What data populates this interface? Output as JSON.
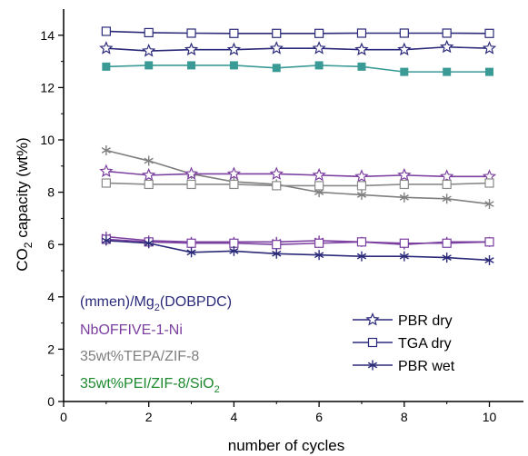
{
  "colors": {
    "mmen": "#2b2a7a",
    "nbo": "#7b3fa0",
    "tepa": "#7f7f7f",
    "pei": "#2e8b3a",
    "zif_pei_series": "#3a9a96",
    "pei_label": "#1d8a2f"
  },
  "chart_data": {
    "type": "line",
    "xlabel": "number of cycles",
    "ylabel": "CO2 capacity (wt%)",
    "ylabel_parts": {
      "main": "CO",
      "sub": "2",
      "rest": " capacity (wt%)"
    },
    "xlim": [
      0,
      10.8
    ],
    "ylim": [
      0,
      15
    ],
    "xticks": [
      0,
      2,
      4,
      6,
      8,
      10
    ],
    "yticks": [
      0,
      2,
      4,
      6,
      8,
      10,
      12,
      14
    ],
    "x": [
      1,
      2,
      3,
      4,
      5,
      6,
      7,
      8,
      9,
      10
    ],
    "material_labels": [
      {
        "text": "(mmen)/Mg",
        "sub": "2",
        "after": "(DOBPDC)",
        "color": "#2b2a7a"
      },
      {
        "text": "NbOFFIVE-1-Ni",
        "sub": "",
        "after": "",
        "color": "#7b3fa0"
      },
      {
        "text": "35wt%TEPA/ZIF-8",
        "sub": "",
        "after": "",
        "color": "#7f7f7f"
      },
      {
        "text": "35wt%PEI/ZIF-8/SiO",
        "sub": "2",
        "after": "",
        "color": "#1d8a2f"
      }
    ],
    "legend": [
      {
        "label": "PBR dry",
        "marker": "star"
      },
      {
        "label": "TGA dry",
        "marker": "square"
      },
      {
        "label": "PBR wet",
        "marker": "asterisk"
      }
    ],
    "series": [
      {
        "material": "(mmen)/Mg2(DOBPDC)",
        "condition": "TGA dry",
        "marker": "square",
        "color": "#2b2a7a",
        "values": [
          14.15,
          14.1,
          14.08,
          14.07,
          14.07,
          14.07,
          14.08,
          14.08,
          14.08,
          14.07
        ]
      },
      {
        "material": "(mmen)/Mg2(DOBPDC)",
        "condition": "PBR dry",
        "marker": "star",
        "color": "#2b2a7a",
        "values": [
          13.5,
          13.4,
          13.45,
          13.45,
          13.5,
          13.5,
          13.45,
          13.45,
          13.55,
          13.5
        ]
      },
      {
        "material": "35wt%PEI/ZIF-8/SiO2",
        "condition": "PBR",
        "marker": "square-filled",
        "color": "#3a9a96",
        "values": [
          12.8,
          12.85,
          12.85,
          12.85,
          12.75,
          12.85,
          12.8,
          12.6,
          12.6,
          12.6
        ]
      },
      {
        "material": "35wt%TEPA/ZIF-8",
        "condition": "PBR",
        "marker": "asterisk",
        "color": "#7f7f7f",
        "values": [
          9.6,
          9.2,
          8.7,
          8.4,
          8.3,
          8.0,
          7.9,
          7.8,
          7.75,
          7.55
        ]
      },
      {
        "material": "NbOFFIVE-1-Ni",
        "condition": "PBR dry",
        "marker": "star",
        "color": "#7b3fa0",
        "values": [
          8.8,
          8.65,
          8.7,
          8.7,
          8.7,
          8.65,
          8.6,
          8.65,
          8.6,
          8.6
        ]
      },
      {
        "material": "NbOFFIVE-1-Ni",
        "condition": "TGA dry",
        "marker": "square",
        "color": "#8a8a8a",
        "values": [
          8.35,
          8.3,
          8.3,
          8.3,
          8.25,
          8.25,
          8.25,
          8.3,
          8.3,
          8.35
        ]
      },
      {
        "material": "NbOFFIVE-1-Ni",
        "condition": "PBR wet",
        "marker": "asterisk",
        "color": "#7b3fa0",
        "values": [
          6.3,
          6.15,
          6.1,
          6.1,
          6.1,
          6.15,
          6.1,
          6.0,
          6.1,
          6.1
        ]
      },
      {
        "material": "NbOFFIVE-1-Ni",
        "condition": "TGA dry",
        "marker": "square",
        "color": "#7b3fa0",
        "values": [
          6.2,
          6.1,
          6.05,
          6.05,
          6.0,
          6.05,
          6.1,
          6.05,
          6.05,
          6.1
        ]
      },
      {
        "material": "(mmen)/Mg2(DOBPDC)",
        "condition": "PBR wet",
        "marker": "asterisk",
        "color": "#2b2a7a",
        "values": [
          6.15,
          6.05,
          5.7,
          5.75,
          5.65,
          5.6,
          5.55,
          5.55,
          5.5,
          5.4
        ]
      }
    ]
  }
}
